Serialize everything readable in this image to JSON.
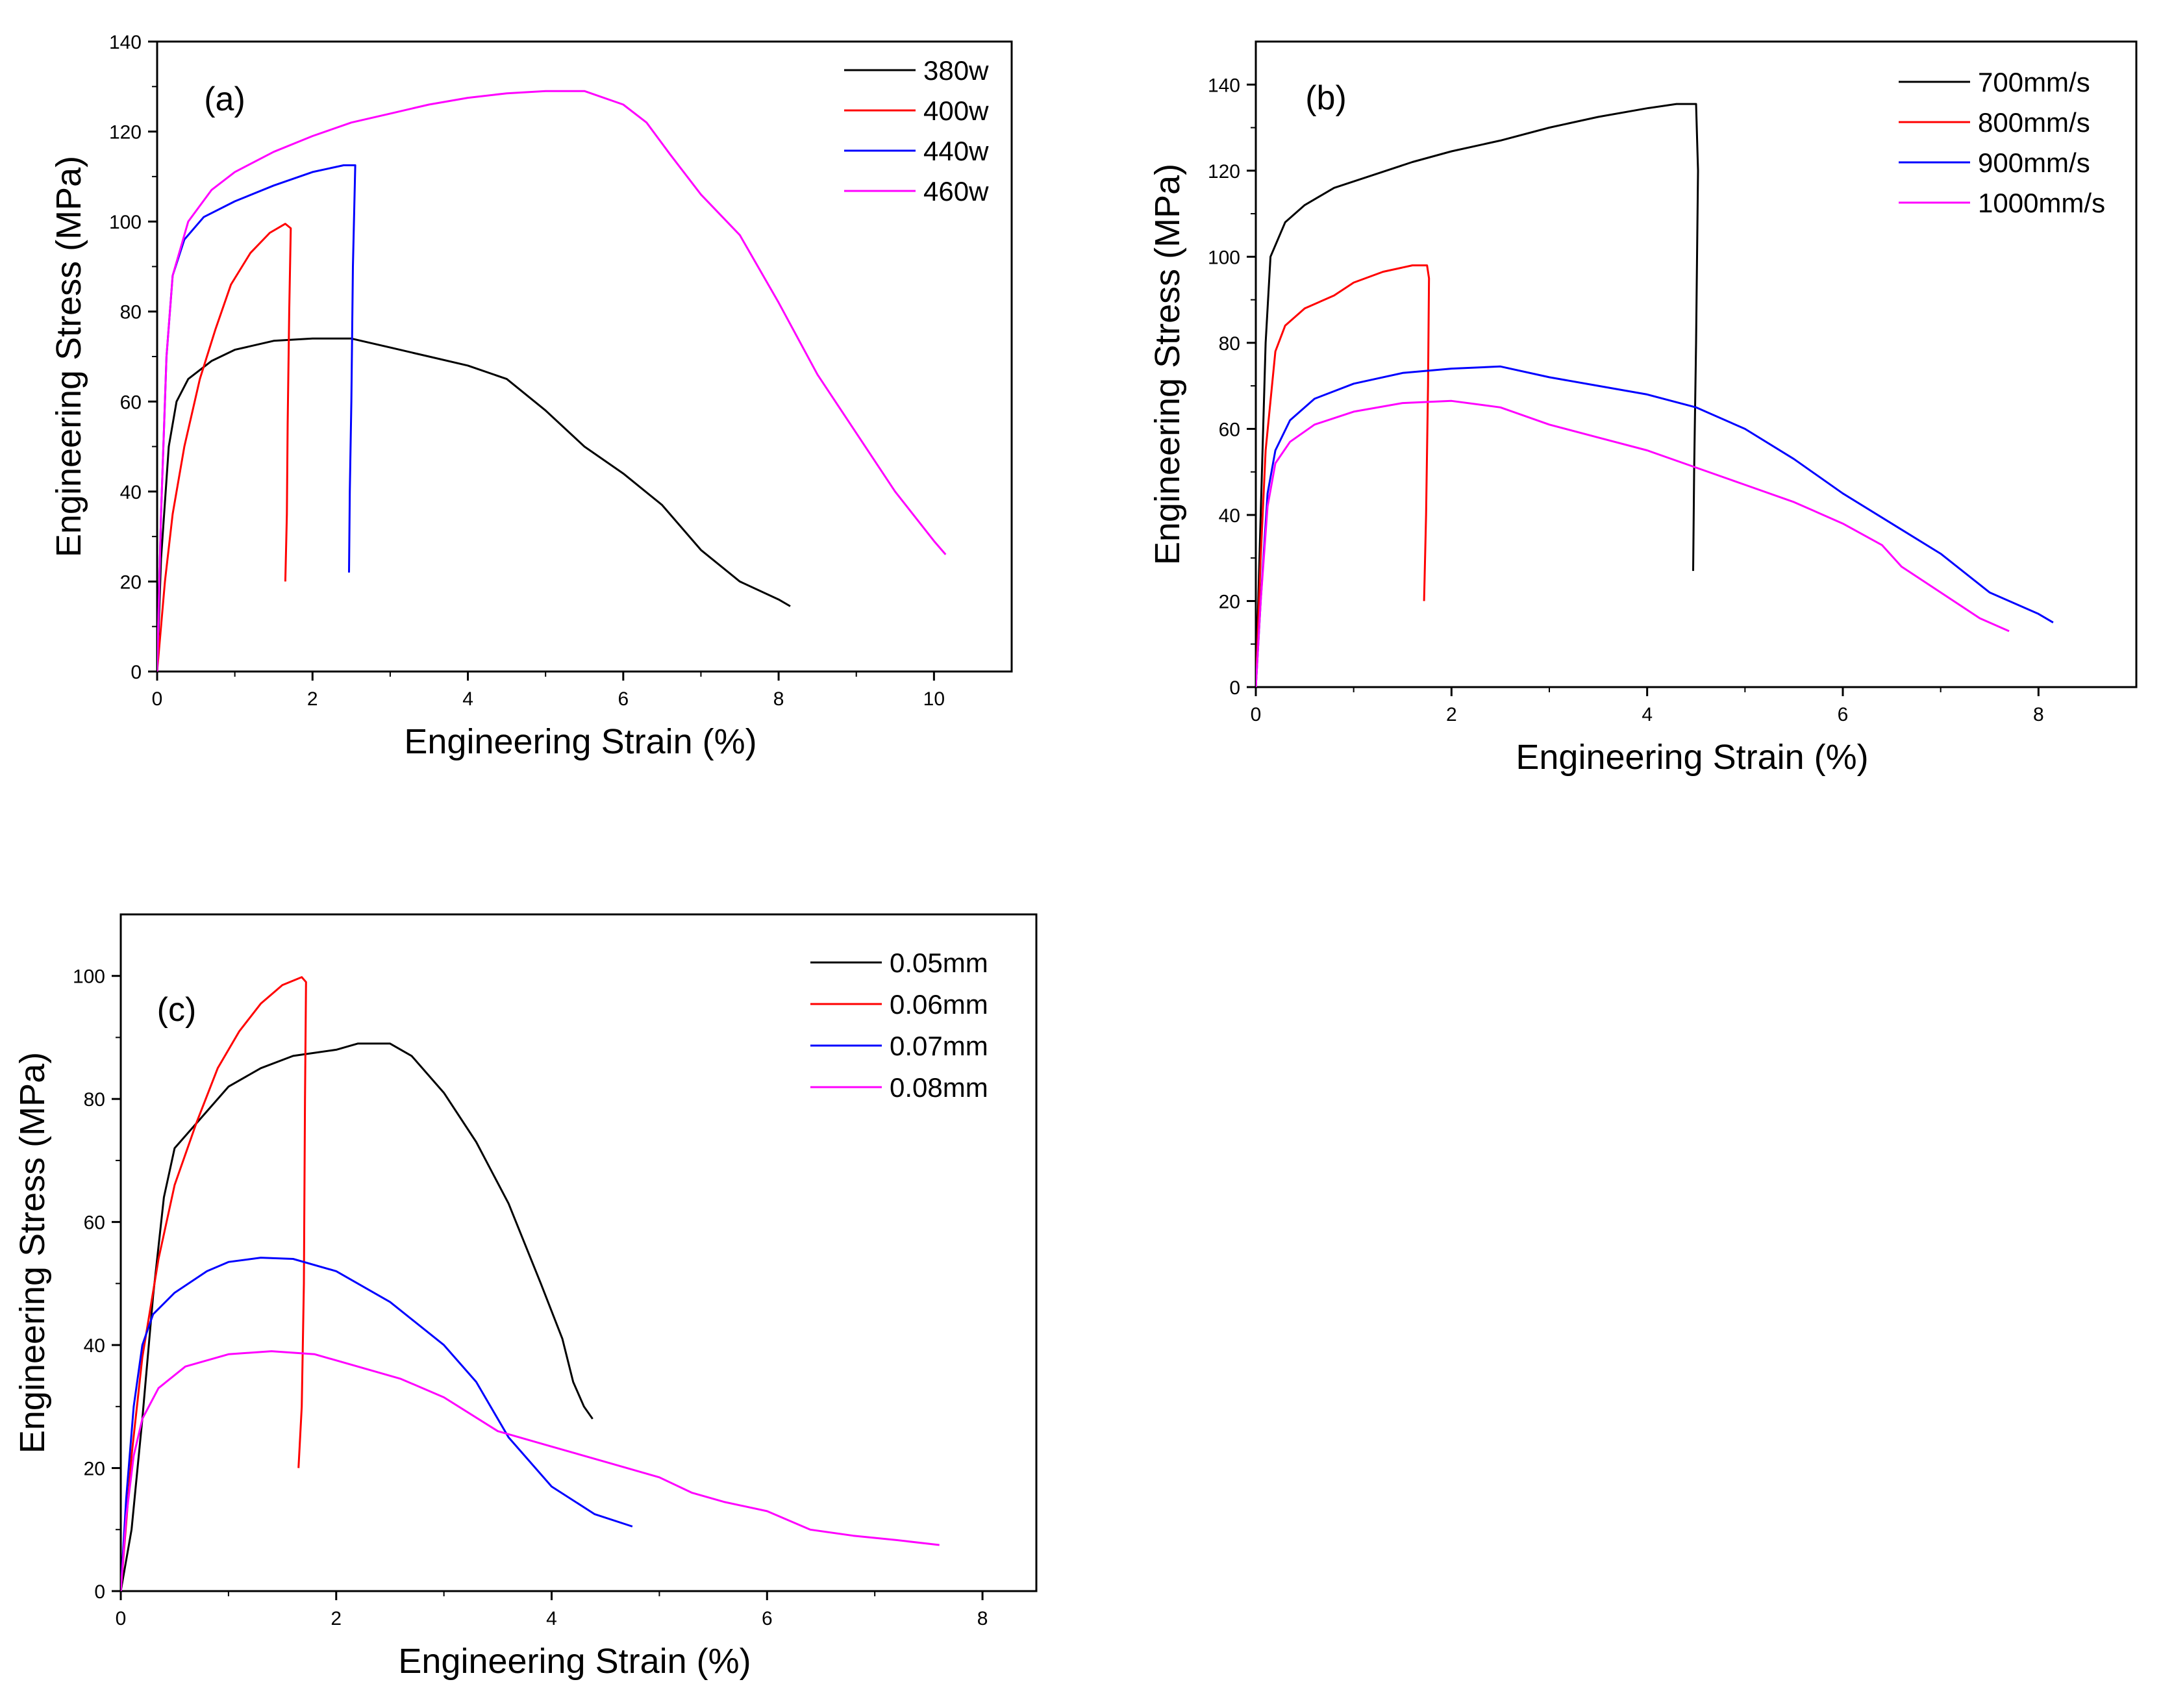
{
  "chart_data": [
    {
      "type": "line",
      "panel_label": "(a)",
      "xlabel": "Engineering Strain (%)",
      "ylabel": "Engineering Stress (MPa)",
      "xlim": [
        0,
        11
      ],
      "ylim": [
        0,
        140
      ],
      "xticks": [
        0,
        2,
        4,
        6,
        8,
        10
      ],
      "yticks": [
        0,
        20,
        40,
        60,
        80,
        100,
        120,
        140
      ],
      "legend_position": "top-right",
      "series": [
        {
          "name": "380w",
          "color": "#000000",
          "points": [
            [
              0,
              0
            ],
            [
              0.05,
              25
            ],
            [
              0.15,
              50
            ],
            [
              0.25,
              60
            ],
            [
              0.4,
              65
            ],
            [
              0.7,
              69
            ],
            [
              1.0,
              71.5
            ],
            [
              1.5,
              73.5
            ],
            [
              2.0,
              74
            ],
            [
              2.5,
              74
            ],
            [
              3.0,
              72
            ],
            [
              3.5,
              70
            ],
            [
              4.0,
              68
            ],
            [
              4.5,
              65
            ],
            [
              5.0,
              58
            ],
            [
              5.5,
              50
            ],
            [
              6.0,
              44
            ],
            [
              6.5,
              37
            ],
            [
              7.0,
              27
            ],
            [
              7.5,
              20
            ],
            [
              8.0,
              16
            ],
            [
              8.15,
              14.5
            ]
          ]
        },
        {
          "name": "400w",
          "color": "#ff0000",
          "points": [
            [
              0,
              0
            ],
            [
              0.1,
              20
            ],
            [
              0.2,
              35
            ],
            [
              0.35,
              50
            ],
            [
              0.55,
              65
            ],
            [
              0.75,
              76
            ],
            [
              0.95,
              86
            ],
            [
              1.2,
              93
            ],
            [
              1.45,
              97.5
            ],
            [
              1.65,
              99.5
            ],
            [
              1.72,
              98.5
            ],
            [
              1.7,
              80
            ],
            [
              1.68,
              55
            ],
            [
              1.67,
              35
            ],
            [
              1.65,
              20
            ]
          ]
        },
        {
          "name": "440w",
          "color": "#0000ff",
          "points": [
            [
              0,
              0
            ],
            [
              0.05,
              35
            ],
            [
              0.12,
              70
            ],
            [
              0.2,
              88
            ],
            [
              0.35,
              96
            ],
            [
              0.6,
              101
            ],
            [
              1.0,
              104.5
            ],
            [
              1.5,
              108
            ],
            [
              2.0,
              111
            ],
            [
              2.4,
              112.5
            ],
            [
              2.55,
              112.5
            ],
            [
              2.52,
              90
            ],
            [
              2.5,
              60
            ],
            [
              2.48,
              40
            ],
            [
              2.47,
              22
            ]
          ]
        },
        {
          "name": "460w",
          "color": "#ff00ff",
          "points": [
            [
              0,
              0
            ],
            [
              0.05,
              35
            ],
            [
              0.12,
              70
            ],
            [
              0.2,
              88
            ],
            [
              0.4,
              100
            ],
            [
              0.7,
              107
            ],
            [
              1.0,
              111
            ],
            [
              1.5,
              115.5
            ],
            [
              2.0,
              119
            ],
            [
              2.5,
              122
            ],
            [
              3.0,
              124
            ],
            [
              3.5,
              126
            ],
            [
              4.0,
              127.5
            ],
            [
              4.5,
              128.5
            ],
            [
              5.0,
              129
            ],
            [
              5.5,
              129
            ],
            [
              6.0,
              126
            ],
            [
              6.3,
              122
            ],
            [
              6.6,
              115
            ],
            [
              7.0,
              106
            ],
            [
              7.5,
              97
            ],
            [
              8.0,
              82
            ],
            [
              8.5,
              66
            ],
            [
              9.0,
              53
            ],
            [
              9.5,
              40
            ],
            [
              10.0,
              29
            ],
            [
              10.15,
              26
            ]
          ]
        }
      ]
    },
    {
      "type": "line",
      "panel_label": "(b)",
      "xlabel": "Engineering Strain (%)",
      "ylabel": "Engineering Stress (MPa)",
      "xlim": [
        0,
        9
      ],
      "ylim": [
        0,
        150
      ],
      "xticks": [
        0,
        2,
        4,
        6,
        8
      ],
      "yticks": [
        0,
        20,
        40,
        60,
        80,
        100,
        120,
        140
      ],
      "legend_position": "top-right",
      "series": [
        {
          "name": "700mm/s",
          "color": "#000000",
          "points": [
            [
              0,
              0
            ],
            [
              0.05,
              40
            ],
            [
              0.1,
              80
            ],
            [
              0.15,
              100
            ],
            [
              0.3,
              108
            ],
            [
              0.5,
              112
            ],
            [
              0.8,
              116
            ],
            [
              1.2,
              119
            ],
            [
              1.6,
              122
            ],
            [
              2.0,
              124.5
            ],
            [
              2.5,
              127
            ],
            [
              3.0,
              130
            ],
            [
              3.5,
              132.5
            ],
            [
              4.0,
              134.5
            ],
            [
              4.3,
              135.5
            ],
            [
              4.5,
              135.5
            ],
            [
              4.52,
              120
            ],
            [
              4.5,
              80
            ],
            [
              4.48,
              50
            ],
            [
              4.47,
              27
            ]
          ]
        },
        {
          "name": "800mm/s",
          "color": "#ff0000",
          "points": [
            [
              0,
              0
            ],
            [
              0.05,
              30
            ],
            [
              0.1,
              55
            ],
            [
              0.2,
              78
            ],
            [
              0.3,
              84
            ],
            [
              0.5,
              88
            ],
            [
              0.8,
              91
            ],
            [
              1.0,
              94
            ],
            [
              1.3,
              96.5
            ],
            [
              1.6,
              98
            ],
            [
              1.75,
              98
            ],
            [
              1.77,
              95
            ],
            [
              1.76,
              70
            ],
            [
              1.74,
              40
            ],
            [
              1.72,
              20
            ]
          ]
        },
        {
          "name": "900mm/s",
          "color": "#0000ff",
          "points": [
            [
              0,
              0
            ],
            [
              0.05,
              20
            ],
            [
              0.12,
              45
            ],
            [
              0.2,
              55
            ],
            [
              0.35,
              62
            ],
            [
              0.6,
              67
            ],
            [
              1.0,
              70.5
            ],
            [
              1.5,
              73
            ],
            [
              2.0,
              74
            ],
            [
              2.5,
              74.5
            ],
            [
              3.0,
              72
            ],
            [
              3.5,
              70
            ],
            [
              4.0,
              68
            ],
            [
              4.5,
              65
            ],
            [
              5.0,
              60
            ],
            [
              5.5,
              53
            ],
            [
              6.0,
              45
            ],
            [
              6.5,
              38
            ],
            [
              7.0,
              31
            ],
            [
              7.5,
              22
            ],
            [
              8.0,
              17
            ],
            [
              8.15,
              15
            ]
          ]
        },
        {
          "name": "1000mm/s",
          "color": "#ff00ff",
          "points": [
            [
              0,
              0
            ],
            [
              0.05,
              20
            ],
            [
              0.12,
              42
            ],
            [
              0.2,
              52
            ],
            [
              0.35,
              57
            ],
            [
              0.6,
              61
            ],
            [
              1.0,
              64
            ],
            [
              1.5,
              66
            ],
            [
              2.0,
              66.5
            ],
            [
              2.5,
              65
            ],
            [
              3.0,
              61
            ],
            [
              3.5,
              58
            ],
            [
              4.0,
              55
            ],
            [
              4.5,
              51
            ],
            [
              5.0,
              47
            ],
            [
              5.5,
              43
            ],
            [
              6.0,
              38
            ],
            [
              6.4,
              33
            ],
            [
              6.6,
              28
            ],
            [
              7.0,
              22
            ],
            [
              7.4,
              16
            ],
            [
              7.7,
              13
            ]
          ]
        }
      ]
    },
    {
      "type": "line",
      "panel_label": "(c)",
      "xlabel": "Engineering Strain (%)",
      "ylabel": "Engineering Stress (MPa)",
      "xlim": [
        0,
        8.5
      ],
      "ylim": [
        0,
        110
      ],
      "xticks": [
        0,
        2,
        4,
        6,
        8
      ],
      "yticks": [
        0,
        20,
        40,
        60,
        80,
        100
      ],
      "legend_position": "top-right",
      "series": [
        {
          "name": "0.05mm",
          "color": "#000000",
          "points": [
            [
              0,
              0
            ],
            [
              0.1,
              10
            ],
            [
              0.2,
              28
            ],
            [
              0.3,
              48
            ],
            [
              0.4,
              64
            ],
            [
              0.5,
              72
            ],
            [
              0.7,
              76
            ],
            [
              1.0,
              82
            ],
            [
              1.3,
              85
            ],
            [
              1.6,
              87
            ],
            [
              2.0,
              88
            ],
            [
              2.2,
              89
            ],
            [
              2.5,
              89
            ],
            [
              2.7,
              87
            ],
            [
              3.0,
              81
            ],
            [
              3.3,
              73
            ],
            [
              3.6,
              63
            ],
            [
              3.9,
              50
            ],
            [
              4.1,
              41
            ],
            [
              4.2,
              34
            ],
            [
              4.3,
              30
            ],
            [
              4.38,
              28
            ]
          ]
        },
        {
          "name": "0.06mm",
          "color": "#ff0000",
          "points": [
            [
              0,
              0
            ],
            [
              0.1,
              22
            ],
            [
              0.2,
              38
            ],
            [
              0.35,
              54
            ],
            [
              0.5,
              66
            ],
            [
              0.7,
              76
            ],
            [
              0.9,
              85
            ],
            [
              1.1,
              91
            ],
            [
              1.3,
              95.5
            ],
            [
              1.5,
              98.5
            ],
            [
              1.68,
              99.8
            ],
            [
              1.72,
              99
            ],
            [
              1.71,
              80
            ],
            [
              1.7,
              50
            ],
            [
              1.68,
              30
            ],
            [
              1.65,
              20
            ]
          ]
        },
        {
          "name": "0.07mm",
          "color": "#0000ff",
          "points": [
            [
              0,
              0
            ],
            [
              0.05,
              15
            ],
            [
              0.12,
              30
            ],
            [
              0.2,
              40
            ],
            [
              0.3,
              45
            ],
            [
              0.5,
              48.5
            ],
            [
              0.8,
              52
            ],
            [
              1.0,
              53.5
            ],
            [
              1.3,
              54.2
            ],
            [
              1.6,
              54
            ],
            [
              2.0,
              52
            ],
            [
              2.5,
              47
            ],
            [
              3.0,
              40
            ],
            [
              3.3,
              34
            ],
            [
              3.6,
              25
            ],
            [
              4.0,
              17
            ],
            [
              4.4,
              12.5
            ],
            [
              4.75,
              10.5
            ]
          ]
        },
        {
          "name": "0.08mm",
          "color": "#ff00ff",
          "points": [
            [
              0,
              0
            ],
            [
              0.05,
              12
            ],
            [
              0.12,
              22
            ],
            [
              0.2,
              28
            ],
            [
              0.35,
              33
            ],
            [
              0.6,
              36.5
            ],
            [
              1.0,
              38.5
            ],
            [
              1.4,
              39
            ],
            [
              1.8,
              38.5
            ],
            [
              2.2,
              36.5
            ],
            [
              2.6,
              34.5
            ],
            [
              3.0,
              31.5
            ],
            [
              3.5,
              26
            ],
            [
              4.0,
              23.5
            ],
            [
              4.5,
              21
            ],
            [
              5.0,
              18.5
            ],
            [
              5.3,
              16
            ],
            [
              5.6,
              14.5
            ],
            [
              6.0,
              13
            ],
            [
              6.4,
              10
            ],
            [
              6.8,
              9
            ],
            [
              7.2,
              8.3
            ],
            [
              7.6,
              7.5
            ]
          ]
        }
      ]
    }
  ]
}
